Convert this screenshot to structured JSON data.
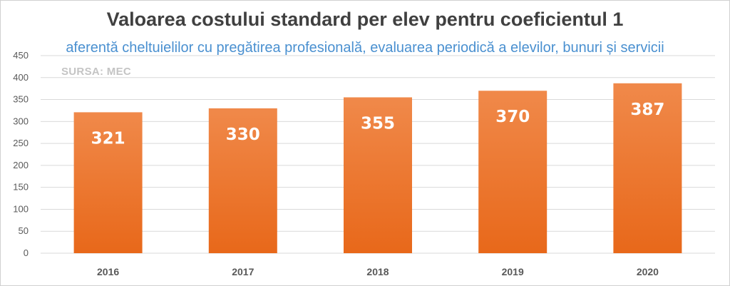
{
  "chart_data": {
    "type": "bar",
    "title": "Valoarea costului standard per elev pentru coeficientul 1",
    "subtitle": "aferentă cheltuielilor cu pregătirea profesională, evaluarea periodică a elevilor, bunuri și servicii",
    "source": "SURSA: MEC",
    "categories": [
      "2016",
      "2017",
      "2018",
      "2019",
      "2020"
    ],
    "values": [
      321,
      330,
      355,
      370,
      387
    ],
    "data_labels": [
      "321",
      "330",
      "355",
      "370",
      "387"
    ],
    "ylim": [
      0,
      450
    ],
    "yticks": [
      0,
      50,
      100,
      150,
      200,
      250,
      300,
      350,
      400,
      450
    ],
    "ytick_labels": [
      "0",
      "50",
      "100",
      "150",
      "200",
      "250",
      "300",
      "350",
      "400",
      "450"
    ],
    "xlabel": "",
    "ylabel": "",
    "grid": true,
    "legend": "none",
    "colors": {
      "bar_top": "#f0894a",
      "bar_bottom": "#e8681a",
      "grid": "#d9d9d9",
      "axis_text": "#595959",
      "title": "#404040",
      "subtitle": "#4a90d0",
      "source": "#c4c4c4",
      "data_label": "#ffffff"
    }
  }
}
